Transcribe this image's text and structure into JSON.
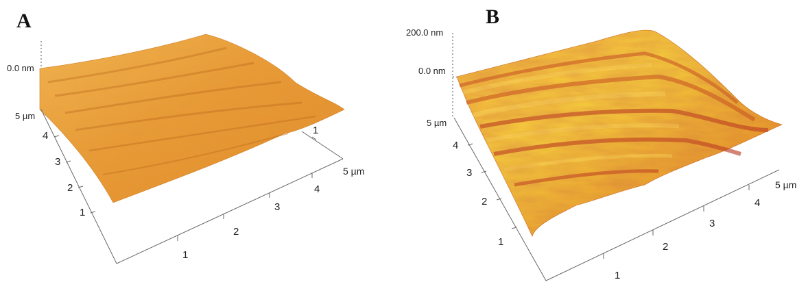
{
  "panels": [
    {
      "letter": "A",
      "z_labels": [
        "0.0 nm"
      ],
      "y_axis": {
        "max_label": "5 µm",
        "ticks": [
          "4",
          "3",
          "2",
          "1"
        ]
      },
      "x_axis": {
        "max_label": "5 µm",
        "ticks": [
          "1",
          "2",
          "3",
          "4"
        ]
      },
      "back_tick": "1"
    },
    {
      "letter": "B",
      "z_labels": [
        "200.0 nm",
        "0.0 nm"
      ],
      "y_axis": {
        "max_label": "5 µm",
        "ticks": [
          "4",
          "3",
          "2",
          "1"
        ]
      },
      "x_axis": {
        "max_label": "5 µm",
        "ticks": [
          "1",
          "2",
          "3",
          "4"
        ]
      }
    }
  ],
  "colors": {
    "surface_light": "#f7c45a",
    "surface_mid": "#eaa03a",
    "surface_dark": "#c9601a",
    "surface_red": "#b8321c",
    "surface_yellow": "#ffe25a"
  }
}
